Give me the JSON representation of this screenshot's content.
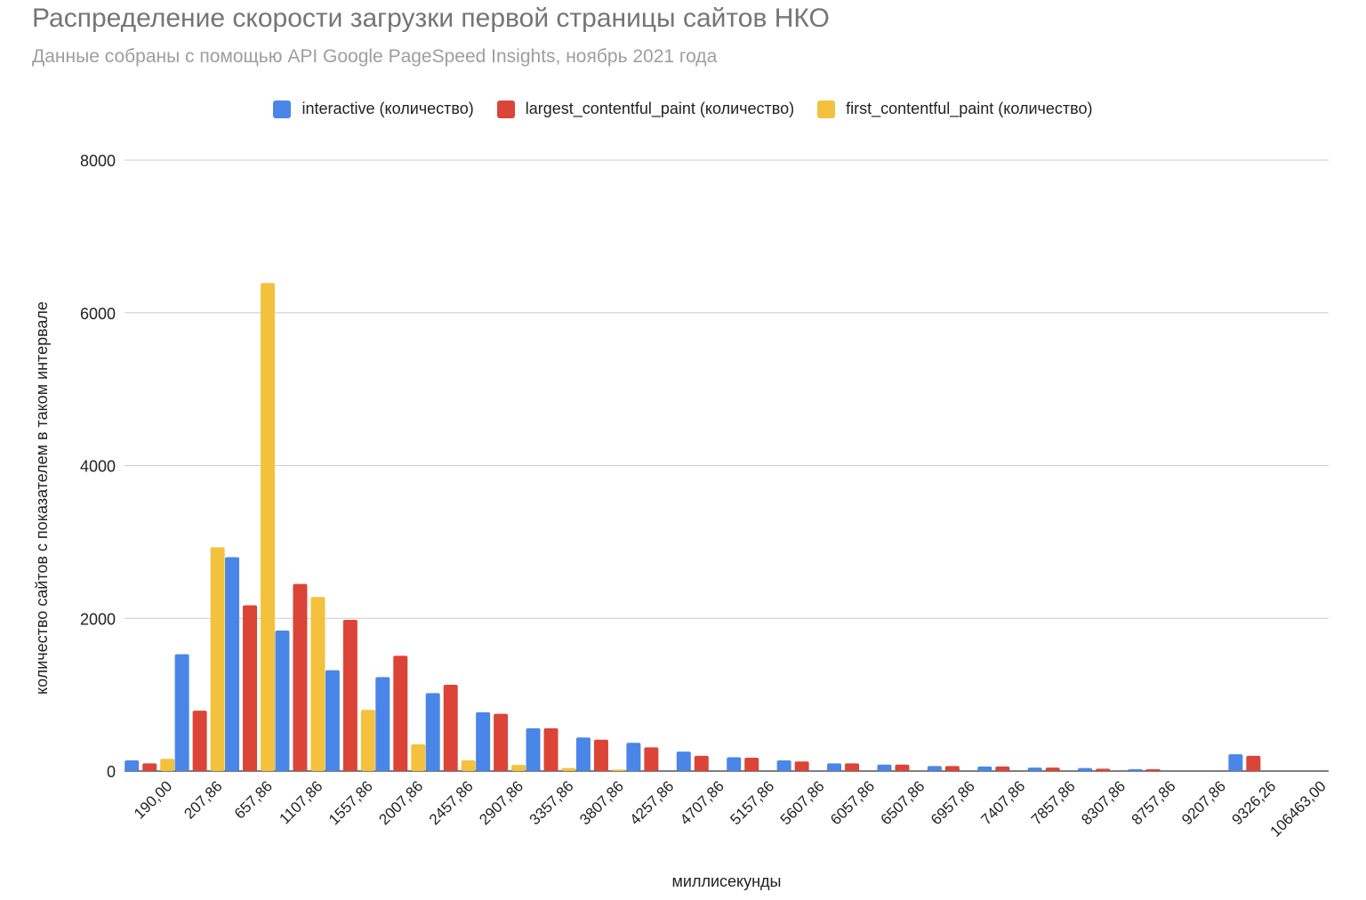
{
  "header": {
    "title": "Распределение скорости загрузки первой страницы сайтов НКО",
    "subtitle": "Данные собраны с помощью API Google PageSpeed Insights, ноябрь 2021 года"
  },
  "legend": {
    "items": [
      {
        "label": "interactive (количество)",
        "color": "#4a86e8"
      },
      {
        "label": "largest_contentful_paint (количество)",
        "color": "#db4437"
      },
      {
        "label": "first_contentful_paint (количество)",
        "color": "#f4c13d"
      }
    ]
  },
  "chart_data": {
    "type": "bar",
    "title": "Распределение скорости загрузки первой страницы сайтов НКО",
    "subtitle": "Данные собраны с помощью API Google PageSpeed Insights, ноябрь 2021 года",
    "xlabel": "миллисекунды",
    "ylabel": "количество сайтов с показателем в таком интервале",
    "ylim": [
      0,
      8000
    ],
    "yticks": [
      0,
      2000,
      4000,
      6000,
      8000
    ],
    "grid": true,
    "legend_position": "top",
    "categories": [
      "190,00",
      "207,86",
      "657,86",
      "1107,86",
      "1557,86",
      "2007,86",
      "2457,86",
      "2907,86",
      "3357,86",
      "3807,86",
      "4257,86",
      "4707,86",
      "5157,86",
      "5607,86",
      "6057,86",
      "6507,86",
      "6957,86",
      "7407,86",
      "7857,86",
      "8307,86",
      "8757,86",
      "9207,86",
      "9326,26",
      "106463,00"
    ],
    "series": [
      {
        "name": "interactive (количество)",
        "color": "#4a86e8",
        "values": [
          140,
          1530,
          2800,
          1840,
          1320,
          1230,
          1020,
          770,
          560,
          440,
          370,
          255,
          180,
          140,
          100,
          85,
          65,
          60,
          45,
          40,
          25,
          0,
          220,
          0
        ]
      },
      {
        "name": "largest_contentful_paint (количество)",
        "color": "#db4437",
        "values": [
          100,
          790,
          2170,
          2450,
          1980,
          1510,
          1130,
          750,
          560,
          410,
          310,
          200,
          175,
          125,
          100,
          85,
          65,
          60,
          45,
          30,
          25,
          0,
          200,
          0
        ]
      },
      {
        "name": "first_contentful_paint (количество)",
        "color": "#f4c13d",
        "values": [
          160,
          2930,
          6390,
          2280,
          800,
          350,
          140,
          80,
          40,
          20,
          0,
          0,
          0,
          0,
          0,
          0,
          0,
          0,
          0,
          0,
          0,
          0,
          0,
          0
        ]
      }
    ]
  }
}
